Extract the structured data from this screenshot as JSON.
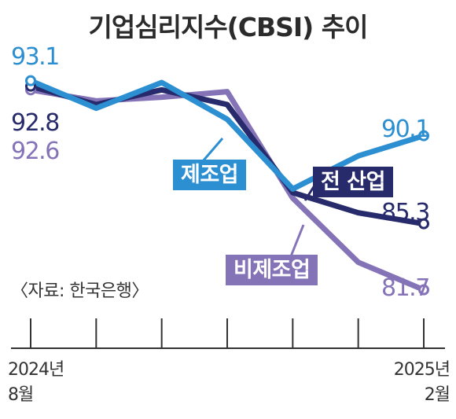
{
  "title": "기업심리지수(CBSI) 추이",
  "source": "〈자료: 한국은행〉",
  "colors": {
    "manufacturing": "#2c8fd1",
    "all_industry": "#272a6b",
    "non_manufacturing": "#8573b8",
    "axis": "#333333",
    "text_dark": "#2f2f2f"
  },
  "x_tick_labels": {
    "start": [
      "2024년",
      "8월"
    ],
    "end": [
      "2025년",
      "2월"
    ]
  },
  "series_labels": {
    "manufacturing": "제조업",
    "all_industry": "전 산업",
    "non_manufacturing": "비제조업"
  },
  "value_labels": {
    "manufacturing_start": "93.1",
    "all_industry_start": "92.8",
    "non_manufacturing_start": "92.6",
    "manufacturing_end": "90.1",
    "all_industry_end": "85.3",
    "non_manufacturing_end": "81.7"
  },
  "chart_data": {
    "type": "line",
    "title": "기업심리지수(CBSI) 추이",
    "x": [
      "2024-08",
      "2024-09",
      "2024-10",
      "2024-11",
      "2024-12",
      "2025-01",
      "2025-02"
    ],
    "series": [
      {
        "name": "제조업",
        "values": [
          93.1,
          91.6,
          93.0,
          91.0,
          87.2,
          89.0,
          90.1
        ]
      },
      {
        "name": "전 산업",
        "values": [
          92.8,
          91.8,
          92.6,
          91.8,
          87.0,
          85.9,
          85.3
        ]
      },
      {
        "name": "비제조업",
        "values": [
          92.6,
          92.0,
          92.2,
          92.5,
          86.7,
          83.2,
          81.7
        ]
      }
    ],
    "ylim": [
      79.5,
      94.5
    ],
    "grid": false,
    "legend": "inline labels"
  }
}
